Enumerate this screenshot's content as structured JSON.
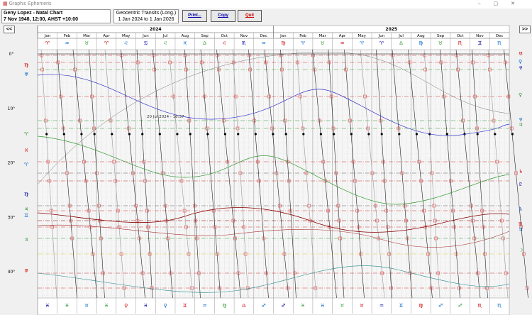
{
  "window": {
    "title": "Graphic Ephemeris"
  },
  "header": {
    "chart_name": "Geny Lopez - Natal Chart",
    "chart_details": "7 Nov 1948, 12:00, AHST +10:00",
    "transits_title": "Geocentric Transits (Long.)",
    "transits_range": "1 Jan 2024 to 1 Jan 2026"
  },
  "buttons": [
    "Print...",
    "Copy",
    "Quit"
  ],
  "navigation": {
    "back": "<<",
    "forward": ">>"
  },
  "years": [
    "2024",
    "2025"
  ],
  "months": [
    "Jan",
    "Feb",
    "Mar",
    "Apr",
    "May",
    "Jun",
    "Jul",
    "Aug",
    "Sep",
    "Oct",
    "Nov",
    "Dec",
    "Jan",
    "Feb",
    "Mar",
    "Apr",
    "May",
    "Jun",
    "Jul",
    "Aug",
    "Sep",
    "Oct",
    "Nov",
    "Dec"
  ],
  "degree_labels": [
    "0°",
    "10°",
    "20°",
    "30°",
    "40°"
  ],
  "cursor_label": "20 Jul 2024 - 16:37",
  "top_glyphs": [
    "♈",
    "♒",
    "♉",
    "♈",
    "♌",
    "♋",
    "♌",
    "♓",
    "♎",
    "♌",
    "♏",
    "♒",
    "♍",
    "♈",
    "♉",
    "♒",
    "♈",
    "♈",
    "♎",
    "♍",
    "♉",
    "♏",
    "♊",
    "♏"
  ],
  "bottom_glyphs": [
    "♓",
    "♓",
    "♉",
    "♓",
    "♀",
    "♓",
    "♀",
    "♊",
    "♒",
    "♍",
    "♎",
    "♐",
    "♐",
    "♓",
    "♓",
    "♉",
    "♉",
    "♒",
    "♊",
    "♍",
    "♐",
    "♐",
    "♏",
    "♏"
  ],
  "left_glyphs": [
    "♍",
    "♅",
    "♈",
    "♓",
    "♈",
    "♍",
    "♃",
    "♊",
    "♃",
    "♅"
  ],
  "right_glyphs": [
    "♅",
    "♀",
    "♆",
    "♀",
    "♆",
    "♃",
    "♄",
    "♇",
    "♄",
    "♏",
    "♃",
    "☽"
  ]
}
